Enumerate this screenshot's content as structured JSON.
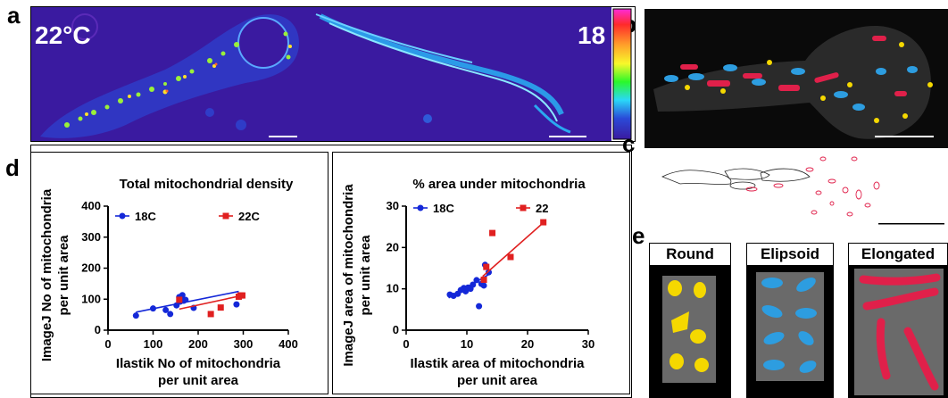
{
  "panels": {
    "a": "a",
    "b": "b",
    "c": "c",
    "d": "d",
    "e": "e"
  },
  "panel_a": {
    "left_temp": "22°C",
    "right_temp": "18"
  },
  "panel_e": {
    "categories": [
      "Round",
      "Elipsoid",
      "Elongated"
    ],
    "colors": {
      "round": "#f5d800",
      "elipsoid": "#2d9de0",
      "elongated": "#e0204a"
    }
  },
  "colors": {
    "series_18C": "#1428d8",
    "series_22C": "#e02020",
    "heatmap_bg": "#3a1aa0"
  },
  "chart_data": [
    {
      "type": "scatter",
      "title": "Total mitochondrial density",
      "ylabel_lines": [
        "ImageJ No of mitochondria",
        "per unit area"
      ],
      "xlabel_lines": [
        "Ilastik No of mitochondria",
        "per unit area"
      ],
      "xlim": [
        0,
        400
      ],
      "ylim": [
        0,
        400
      ],
      "xticks": [
        0,
        100,
        200,
        300,
        400
      ],
      "yticks": [
        0,
        100,
        200,
        300,
        400
      ],
      "series": [
        {
          "name": "18C",
          "color": "#1428d8",
          "marker": "circle",
          "points": [
            [
              62,
              47
            ],
            [
              100,
              70
            ],
            [
              128,
              65
            ],
            [
              138,
              52
            ],
            [
              152,
              80
            ],
            [
              158,
              107
            ],
            [
              160,
              92
            ],
            [
              165,
              113
            ],
            [
              168,
              95
            ],
            [
              172,
              98
            ],
            [
              190,
              72
            ],
            [
              285,
              83
            ]
          ],
          "fit": [
            [
              62,
              58
            ],
            [
              290,
              125
            ]
          ]
        },
        {
          "name": "22C",
          "color": "#e02020",
          "marker": "square",
          "points": [
            [
              158,
              98
            ],
            [
              228,
              52
            ],
            [
              250,
              73
            ],
            [
              290,
              108
            ],
            [
              294,
              112
            ],
            [
              298,
              112
            ]
          ],
          "fit": [
            [
              158,
              68
            ],
            [
              298,
              112
            ]
          ]
        }
      ]
    },
    {
      "type": "scatter",
      "title": "% area under mitochondria",
      "ylabel_lines": [
        "ImageJ area of mitochondria",
        "per unit area"
      ],
      "xlabel_lines": [
        "Ilastik area of mitochondria",
        "per unit area"
      ],
      "xlim": [
        0,
        30
      ],
      "ylim": [
        0,
        30
      ],
      "xticks": [
        0,
        10,
        20,
        30
      ],
      "yticks": [
        0,
        10,
        20,
        30
      ],
      "series": [
        {
          "name": "18C",
          "color": "#1428d8",
          "marker": "circle",
          "points": [
            [
              7.2,
              8.6
            ],
            [
              7.8,
              8.3
            ],
            [
              8.5,
              8.8
            ],
            [
              9.0,
              9.7
            ],
            [
              9.5,
              10.2
            ],
            [
              9.8,
              9.4
            ],
            [
              10.2,
              10.3
            ],
            [
              10.6,
              10.0
            ],
            [
              11.0,
              11.0
            ],
            [
              11.6,
              12.1
            ],
            [
              12.0,
              5.8
            ],
            [
              12.4,
              11.2
            ],
            [
              12.8,
              10.8
            ],
            [
              13.0,
              15.8
            ],
            [
              13.6,
              14.0
            ]
          ],
          "fit": [
            [
              7.0,
              7.8
            ],
            [
              14.0,
              13.8
            ]
          ]
        },
        {
          "name": "22",
          "color": "#e02020",
          "marker": "square",
          "points": [
            [
              12.8,
              12.2
            ],
            [
              13.2,
              15.3
            ],
            [
              14.2,
              23.5
            ],
            [
              17.2,
              17.7
            ],
            [
              22.6,
              26.1
            ]
          ],
          "fit": [
            [
              12.6,
              13.0
            ],
            [
              22.6,
              26.0
            ]
          ]
        }
      ]
    }
  ]
}
